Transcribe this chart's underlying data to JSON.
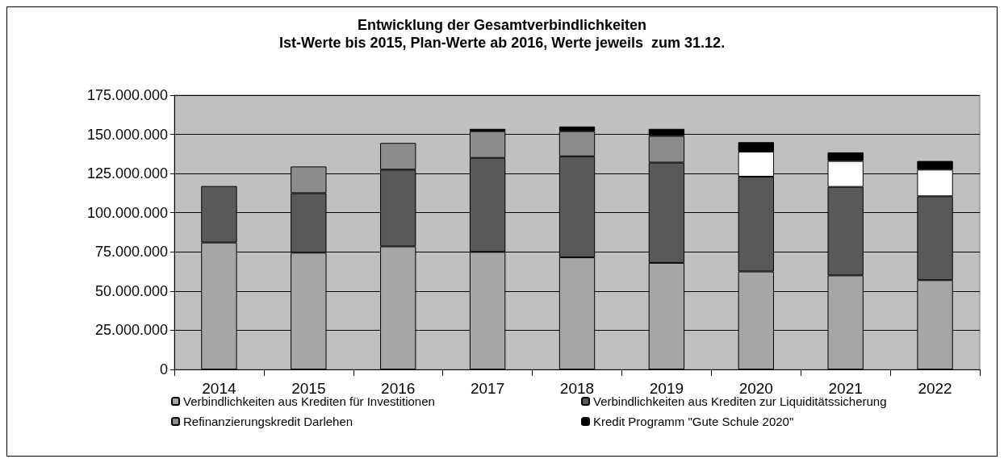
{
  "chart_data": {
    "type": "bar",
    "title": "Entwicklung der Gesamtverbindlichkeiten",
    "subtitle": "Ist-Werte bis 2015, Plan-Werte ab 2016, Werte jeweils  zum 31.12.",
    "categories": [
      "2014",
      "2015",
      "2016",
      "2017",
      "2018",
      "2019",
      "2020",
      "2021",
      "2022"
    ],
    "stacked": true,
    "series": [
      {
        "name": "Verbindlichkeiten aus Krediten für Investitionen",
        "color": "#a6a6a6",
        "values": [
          81000000,
          74500000,
          78500000,
          75000000,
          71500000,
          68000000,
          62500000,
          60000000,
          57000000
        ]
      },
      {
        "name": "Verbindlichkeiten aus Krediten zur Liquiditätssicherung",
        "color": "#595959",
        "values": [
          36000000,
          38000000,
          49000000,
          60000000,
          64500000,
          64000000,
          60500000,
          56500000,
          53500000
        ]
      },
      {
        "name": "Refinanzierungskredit Darlehen",
        "color": "#8c8c8c",
        "colors": [
          "#8c8c8c",
          "#8c8c8c",
          "#8c8c8c",
          "#8c8c8c",
          "#8c8c8c",
          "#8c8c8c",
          "#ffffff",
          "#ffffff",
          "#ffffff"
        ],
        "values": [
          null,
          17000000,
          17000000,
          17000000,
          16000000,
          17000000,
          16000000,
          16500000,
          17000000
        ]
      },
      {
        "name": "Kredit Programm \"Gute Schule 2020\"",
        "color": "#000000",
        "values": [
          null,
          null,
          null,
          1500000,
          3000000,
          4500000,
          6000000,
          5500000,
          5500000
        ]
      }
    ],
    "ylim": [
      0,
      175000000
    ],
    "yticks": [
      0,
      {
        "value": 25000000,
        "label": "25.000.000"
      },
      {
        "value": 50000000,
        "label": "50.000.000"
      },
      {
        "value": 75000000,
        "label": "75.000.000"
      },
      {
        "value": 100000000,
        "label": "100.000.000"
      },
      {
        "value": 125000000,
        "label": "125.000.000"
      },
      {
        "value": 150000000,
        "label": "150.000.000"
      },
      {
        "value": 175000000,
        "label": "175.000.000"
      }
    ],
    "grid": "y",
    "legend": "bottom"
  }
}
